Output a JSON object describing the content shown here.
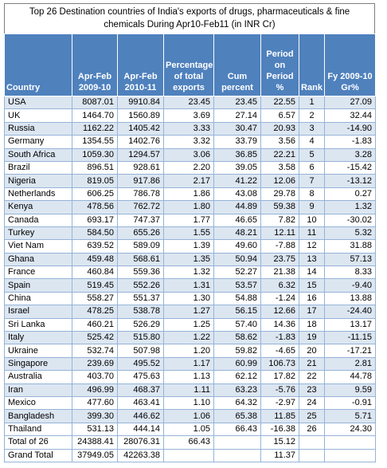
{
  "title": "Top 26 Destination countries of India's exports of drugs, pharmaceuticals & fine chemicals During Apr10-Feb11 (in INR Cr)",
  "table": {
    "header": [
      "Country",
      "Apr-Feb 2009-10",
      "Apr-Feb 2010-11",
      "Percentage of total exports",
      "Cum percent",
      "Period on Period %",
      "Rank",
      "Fy 2009-10 Gr%"
    ],
    "rows": [
      [
        "USA",
        "8087.01",
        "9910.84",
        "23.45",
        "23.45",
        "22.55",
        "1",
        "27.09"
      ],
      [
        "UK",
        "1464.70",
        "1560.89",
        "3.69",
        "27.14",
        "6.57",
        "2",
        "32.44"
      ],
      [
        "Russia",
        "1162.22",
        "1405.42",
        "3.33",
        "30.47",
        "20.93",
        "3",
        "-14.90"
      ],
      [
        "Germany",
        "1354.55",
        "1402.76",
        "3.32",
        "33.79",
        "3.56",
        "4",
        "-1.83"
      ],
      [
        "South Africa",
        "1059.30",
        "1294.57",
        "3.06",
        "36.85",
        "22.21",
        "5",
        "3.28"
      ],
      [
        "Brazil",
        "896.51",
        "928.61",
        "2.20",
        "39.05",
        "3.58",
        "6",
        "-15.42"
      ],
      [
        "Nigeria",
        "819.05",
        "917.86",
        "2.17",
        "41.22",
        "12.06",
        "7",
        "-13.12"
      ],
      [
        "Netherlands",
        "606.25",
        "786.78",
        "1.86",
        "43.08",
        "29.78",
        "8",
        "0.27"
      ],
      [
        "Kenya",
        "478.56",
        "762.72",
        "1.80",
        "44.89",
        "59.38",
        "9",
        "1.32"
      ],
      [
        "Canada",
        "693.17",
        "747.37",
        "1.77",
        "46.65",
        "7.82",
        "10",
        "-30.02"
      ],
      [
        "Turkey",
        "584.50",
        "655.26",
        "1.55",
        "48.21",
        "12.11",
        "11",
        "5.32"
      ],
      [
        "Viet Nam",
        "639.52",
        "589.09",
        "1.39",
        "49.60",
        "-7.88",
        "12",
        "31.88"
      ],
      [
        "Ghana",
        "459.48",
        "568.61",
        "1.35",
        "50.94",
        "23.75",
        "13",
        "57.13"
      ],
      [
        "France",
        "460.84",
        "559.36",
        "1.32",
        "52.27",
        "21.38",
        "14",
        "8.33"
      ],
      [
        "Spain",
        "519.45",
        "552.26",
        "1.31",
        "53.57",
        "6.32",
        "15",
        "-9.40"
      ],
      [
        "China",
        "558.27",
        "551.37",
        "1.30",
        "54.88",
        "-1.24",
        "16",
        "13.88"
      ],
      [
        "Israel",
        "478.25",
        "538.78",
        "1.27",
        "56.15",
        "12.66",
        "17",
        "-24.40"
      ],
      [
        "Sri Lanka",
        "460.21",
        "526.29",
        "1.25",
        "57.40",
        "14.36",
        "18",
        "13.17"
      ],
      [
        "Italy",
        "525.42",
        "515.80",
        "1.22",
        "58.62",
        "-1.83",
        "19",
        "-11.15"
      ],
      [
        "Ukraine",
        "532.74",
        "507.98",
        "1.20",
        "59.82",
        "-4.65",
        "20",
        "-17.21"
      ],
      [
        "Singapore",
        "239.69",
        "495.52",
        "1.17",
        "60.99",
        "106.73",
        "21",
        "2.81"
      ],
      [
        "Australia",
        "403.70",
        "475.63",
        "1.13",
        "62.12",
        "17.82",
        "22",
        "44.78"
      ],
      [
        "Iran",
        "496.99",
        "468.37",
        "1.11",
        "63.23",
        "-5.76",
        "23",
        "9.59"
      ],
      [
        "Mexico",
        "477.60",
        "463.41",
        "1.10",
        "64.32",
        "-2.97",
        "24",
        "-0.91"
      ],
      [
        "Bangladesh",
        "399.30",
        "446.62",
        "1.06",
        "65.38",
        "11.85",
        "25",
        "5.71"
      ],
      [
        "Thailand",
        "531.13",
        "444.14",
        "1.05",
        "66.43",
        "-16.38",
        "26",
        "24.30"
      ]
    ],
    "totals": [
      {
        "label": "Total of 26",
        "cells": [
          "24388.41",
          "28076.31",
          "66.43",
          null,
          "15.12",
          null,
          null
        ]
      },
      {
        "label": "Grand Total",
        "cells": [
          "37949.05",
          "42263.38",
          null,
          null,
          "11.37",
          null,
          null
        ]
      }
    ]
  }
}
